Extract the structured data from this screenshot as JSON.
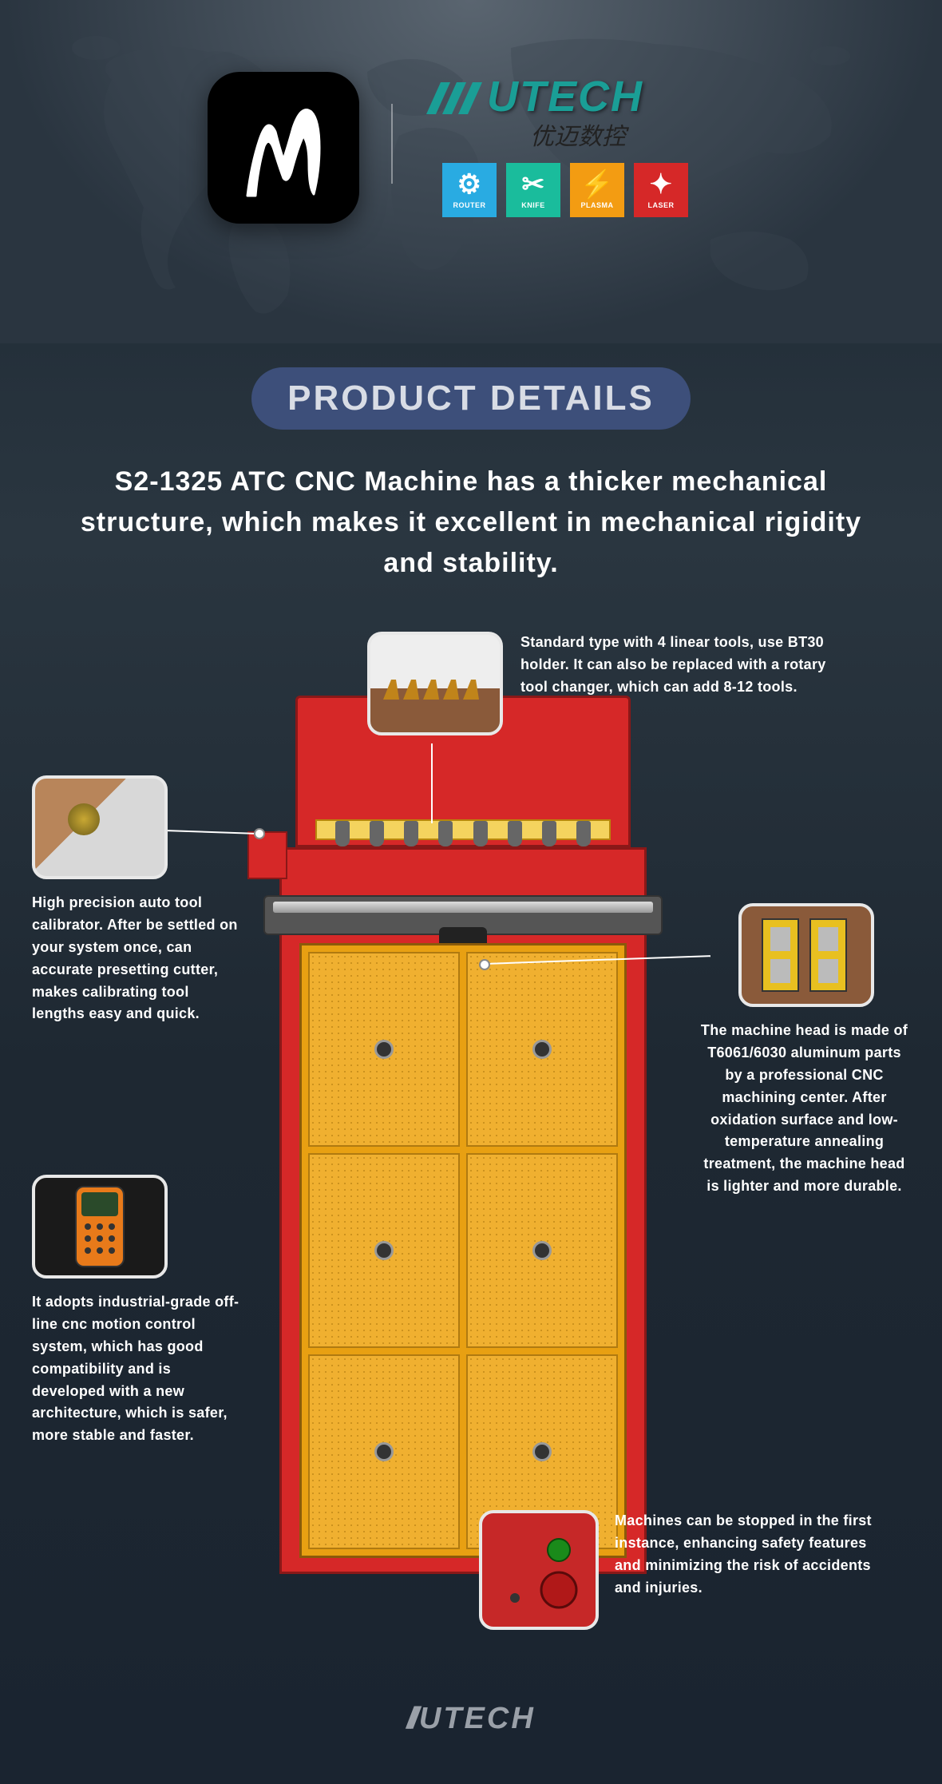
{
  "brand": {
    "name": "UTECH",
    "tagline": "优迈数控",
    "color": "#1a9e96"
  },
  "categories": [
    {
      "label": "ROUTER",
      "bg": "#29abe2",
      "glyph": "⚙"
    },
    {
      "label": "KNIFE",
      "bg": "#1abc9c",
      "glyph": "✂"
    },
    {
      "label": "PLASMA",
      "bg": "#f39c12",
      "glyph": "⚡"
    },
    {
      "label": "LASER",
      "bg": "#d62828",
      "glyph": "✦"
    }
  ],
  "title": "PRODUCT DETAILS",
  "subtitle": "S2-1325 ATC CNC Machine has a thicker mechanical structure, which makes it excellent in mechanical rigidity and stability.",
  "callouts": {
    "tools": "Standard type with 4 linear tools, use BT30 holder. It can also be replaced with a rotary tool changer, which can add 8-12 tools.",
    "calibrator": "High precision auto tool calibrator. After be settled on your system once, can accurate presetting cutter, makes calibrating tool lengths easy and quick.",
    "head": "The machine head is made of T6061/6030 aluminum parts by a professional CNC machining center. After oxidation surface and low-temperature annealing treatment, the machine head is lighter and more durable.",
    "controller": "It adopts industrial-grade off-line cnc motion control system, which has good compatibility and is developed with a new architecture, which is safer, more stable and faster.",
    "safety": "Machines can be stopped in the first instance, enhancing safety features and minimizing the risk of accidents and injuries."
  },
  "machine_colors": {
    "frame": "#d62828",
    "frame_border": "#8a1818",
    "bed": "#e8a012",
    "tool_bar": "#f4d35e"
  },
  "footer_brand": "UTECH"
}
